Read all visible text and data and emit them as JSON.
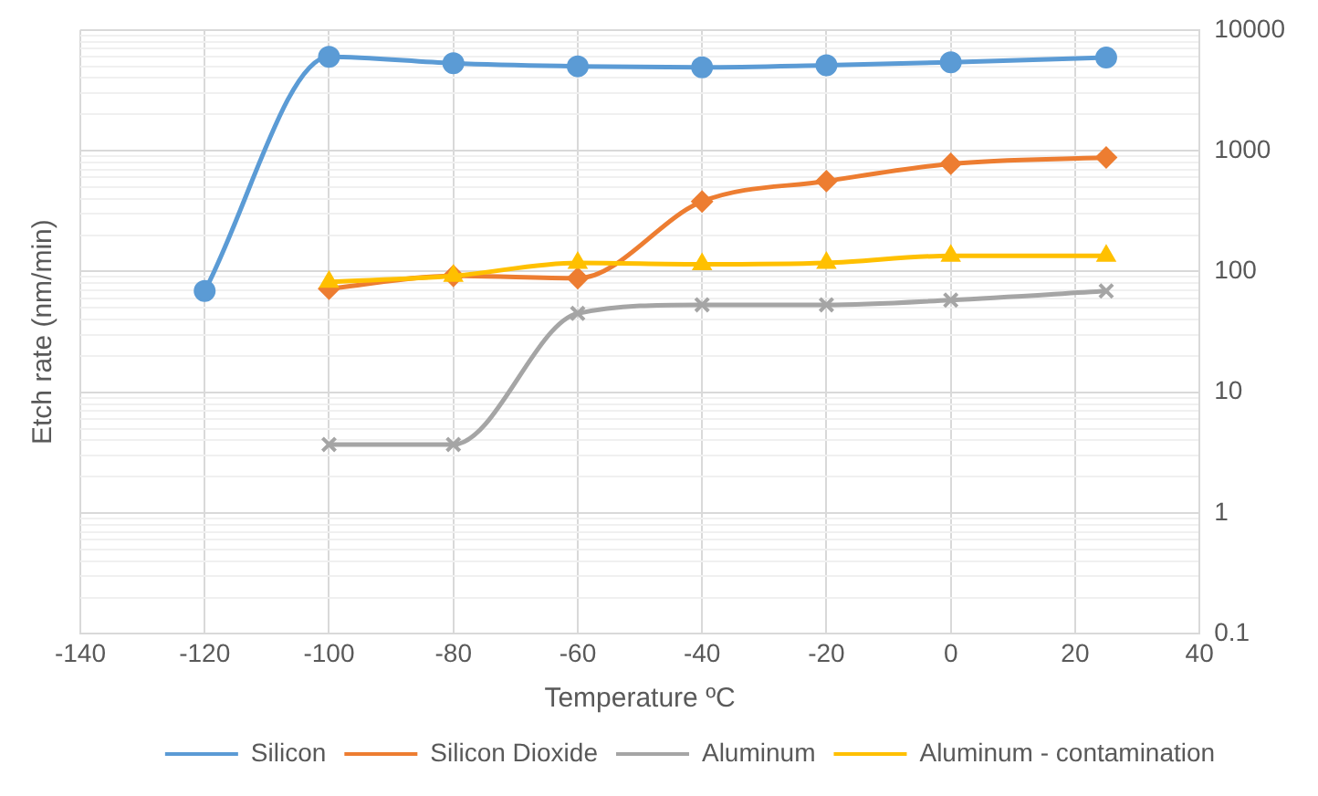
{
  "chart_data": {
    "type": "line",
    "xlabel": "Temperature ºC",
    "ylabel": "Etch rate (nm/min)",
    "x": [
      -120,
      -100,
      -80,
      -60,
      -40,
      -20,
      0,
      25
    ],
    "series": [
      {
        "name": "Silicon",
        "color": "#5b9bd5",
        "marker": "circle",
        "values": [
          69,
          6000,
          5300,
          5000,
          4900,
          5100,
          5400,
          5900
        ]
      },
      {
        "name": "Silicon Dioxide",
        "color": "#ed7d31",
        "marker": "diamond",
        "values": [
          null,
          72,
          92,
          88,
          380,
          560,
          780,
          880
        ]
      },
      {
        "name": "Aluminum",
        "color": "#a5a5a5",
        "marker": "cross",
        "values": [
          null,
          3.7,
          3.7,
          45,
          53,
          53,
          58,
          69
        ]
      },
      {
        "name": "Aluminum - contamination",
        "color": "#ffc000",
        "marker": "triangle",
        "values": [
          null,
          82,
          92,
          118,
          115,
          118,
          135,
          135
        ]
      }
    ],
    "log": "y",
    "xlim": [
      -140,
      40
    ],
    "xticks": [
      -140,
      -120,
      -100,
      -80,
      -60,
      -40,
      -20,
      0,
      20,
      40
    ],
    "ylim": [
      0.1,
      10000
    ],
    "yticks": [
      0.1,
      {
        "value": 0.2,
        "label": null
      },
      {
        "value": 0.3,
        "label": null
      },
      {
        "value": 0.4,
        "label": null
      },
      {
        "value": 0.5,
        "label": null
      },
      {
        "value": 0.6,
        "label": null
      },
      {
        "value": 0.7,
        "label": null
      },
      {
        "value": 0.8,
        "label": null
      },
      {
        "value": 0.9,
        "label": null
      },
      1,
      {
        "value": 2,
        "label": null
      },
      {
        "value": 3,
        "label": null
      },
      {
        "value": 4,
        "label": null
      },
      {
        "value": 5,
        "label": null
      },
      {
        "value": 6,
        "label": null
      },
      {
        "value": 7,
        "label": null
      },
      {
        "value": 8,
        "label": null
      },
      {
        "value": 9,
        "label": null
      },
      10,
      {
        "value": 20,
        "label": null
      },
      {
        "value": 30,
        "label": null
      },
      {
        "value": 40,
        "label": null
      },
      {
        "value": 50,
        "label": null
      },
      {
        "value": 60,
        "label": null
      },
      {
        "value": 70,
        "label": null
      },
      {
        "value": 80,
        "label": null
      },
      {
        "value": 90,
        "label": null
      },
      100,
      {
        "value": 200,
        "label": null
      },
      {
        "value": 300,
        "label": null
      },
      {
        "value": 400,
        "label": null
      },
      {
        "value": 500,
        "label": null
      },
      {
        "value": 600,
        "label": null
      },
      {
        "value": 700,
        "label": null
      },
      {
        "value": 800,
        "label": null
      },
      {
        "value": 900,
        "label": null
      },
      1000,
      {
        "value": 2000,
        "label": null
      },
      {
        "value": 3000,
        "label": null
      },
      {
        "value": 4000,
        "label": null
      },
      {
        "value": 5000,
        "label": null
      },
      {
        "value": 6000,
        "label": null
      },
      {
        "value": 7000,
        "label": null
      },
      {
        "value": 8000,
        "label": null
      },
      {
        "value": 9000,
        "label": null
      },
      10000
    ],
    "grid": true,
    "legend": "bottom",
    "line_style": "solid"
  }
}
